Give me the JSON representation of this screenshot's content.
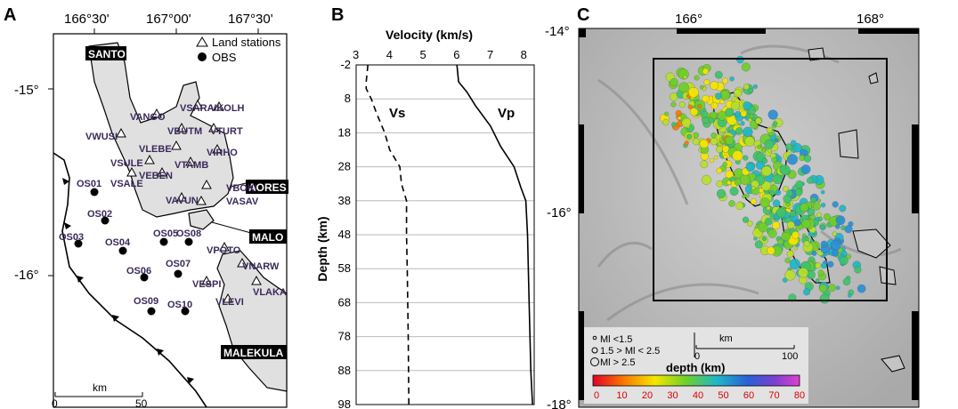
{
  "figure": {
    "panel_a": {
      "letter": "A",
      "lon_ticks": [
        "166°30'",
        "167°00'",
        "167°30'"
      ],
      "lat_ticks": [
        "-15°",
        "-16°"
      ],
      "legend": {
        "land": "Land stations",
        "obs": "OBS"
      },
      "islands": [
        "SANTO",
        "AORES",
        "MALO",
        "MALEKULA"
      ],
      "land_stations": [
        "VSARA",
        "VKOLH",
        "VANGO",
        "VBUTM",
        "VTURT",
        "VWUSI",
        "VLEBE",
        "VIRHO",
        "VSULE",
        "VTAMB",
        "VEBEN",
        "VSALE",
        "VBOKI",
        "VAVUN",
        "VASAV",
        "VPOTO",
        "VNARW",
        "VESPI",
        "VLAKA",
        "VLEVI"
      ],
      "obs_stations": [
        "OS01",
        "OS02",
        "OS03",
        "OS04",
        "OS05",
        "OS08",
        "OS06",
        "OS07",
        "OS09",
        "OS10"
      ],
      "scale": {
        "unit": "km",
        "start": "0",
        "end": "50"
      }
    },
    "panel_b": {
      "letter": "B",
      "x_title": "Velocity (km/s)",
      "y_title": "Depth (km)",
      "x_ticks": [
        "3",
        "4",
        "5",
        "6",
        "7",
        "8"
      ],
      "y_ticks": [
        "-2",
        "8",
        "18",
        "28",
        "38",
        "48",
        "58",
        "68",
        "78",
        "88",
        "98"
      ],
      "vs_label": "Vs",
      "vp_label": "Vp"
    },
    "panel_c": {
      "letter": "C",
      "lon_ticks": [
        "166°",
        "168°"
      ],
      "lat_ticks": [
        "-14°",
        "-16°",
        "-18°"
      ],
      "magnitude_legend": [
        "Ml <1.5",
        "1.5 > Ml < 2.5",
        "Ml > 2.5"
      ],
      "scale": {
        "unit": "km",
        "start": "0",
        "end": "100"
      },
      "depth_title": "depth (km)",
      "depth_ticks": [
        "0",
        "10",
        "20",
        "30",
        "40",
        "50",
        "60",
        "70",
        "80"
      ]
    }
  },
  "chart_data": {
    "type": "line",
    "title": "",
    "xlabel": "Velocity (km/s)",
    "ylabel": "Depth (km)",
    "xlim": [
      3,
      8.3
    ],
    "ylim": [
      98,
      -2
    ],
    "series": [
      {
        "name": "Vs",
        "points": [
          [
            3.35,
            -2
          ],
          [
            3.3,
            3
          ],
          [
            3.3,
            5
          ],
          [
            3.45,
            8
          ],
          [
            3.6,
            12
          ],
          [
            3.85,
            18
          ],
          [
            4.0,
            23
          ],
          [
            4.3,
            28
          ],
          [
            4.35,
            33
          ],
          [
            4.5,
            38
          ],
          [
            4.5,
            48
          ],
          [
            4.52,
            58
          ],
          [
            4.55,
            78
          ],
          [
            4.57,
            98
          ]
        ]
      },
      {
        "name": "Vp",
        "points": [
          [
            6.0,
            -2
          ],
          [
            6.05,
            3
          ],
          [
            6.3,
            6
          ],
          [
            6.55,
            10
          ],
          [
            7.0,
            16
          ],
          [
            7.3,
            22
          ],
          [
            7.7,
            28
          ],
          [
            7.9,
            34
          ],
          [
            8.05,
            38
          ],
          [
            8.1,
            48
          ],
          [
            8.15,
            68
          ],
          [
            8.2,
            88
          ],
          [
            8.25,
            98
          ]
        ]
      }
    ]
  }
}
